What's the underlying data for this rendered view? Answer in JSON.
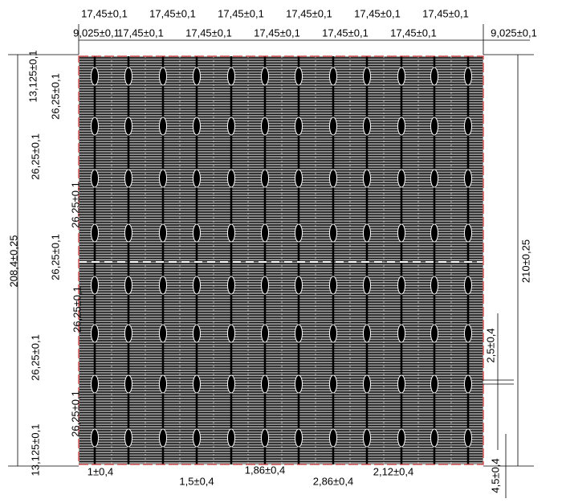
{
  "top_row": [
    "17,45±0,1",
    "17,45±0,1",
    "17,45±0,1",
    "17,45±0,1",
    "17,45±0,1",
    "17,45±0,1"
  ],
  "second_row": [
    "9,025±0,1",
    "17,45±0,1",
    "17,45±0,1",
    "17,45±0,1",
    "17,45±0,1",
    "17,45±0,1",
    "9,025±0,1"
  ],
  "left_dimensions": [
    "208,4±0,25",
    "13,125±0,1",
    "26,25±0,1",
    "26,25±0,1",
    "26,25±0,1",
    "26,25±0,1",
    "26,25±0,1",
    "26,25±0,1",
    "26,25±0,1",
    "13,125±0,1"
  ],
  "right_dimensions": [
    "210±0,25",
    "2,5±0,4",
    "4,5±0,4"
  ],
  "bottom_dimensions": [
    "1±0,4",
    "1,5±0,4",
    "1,86±0,4",
    "2,86±0,4",
    "2,12±0,4"
  ]
}
